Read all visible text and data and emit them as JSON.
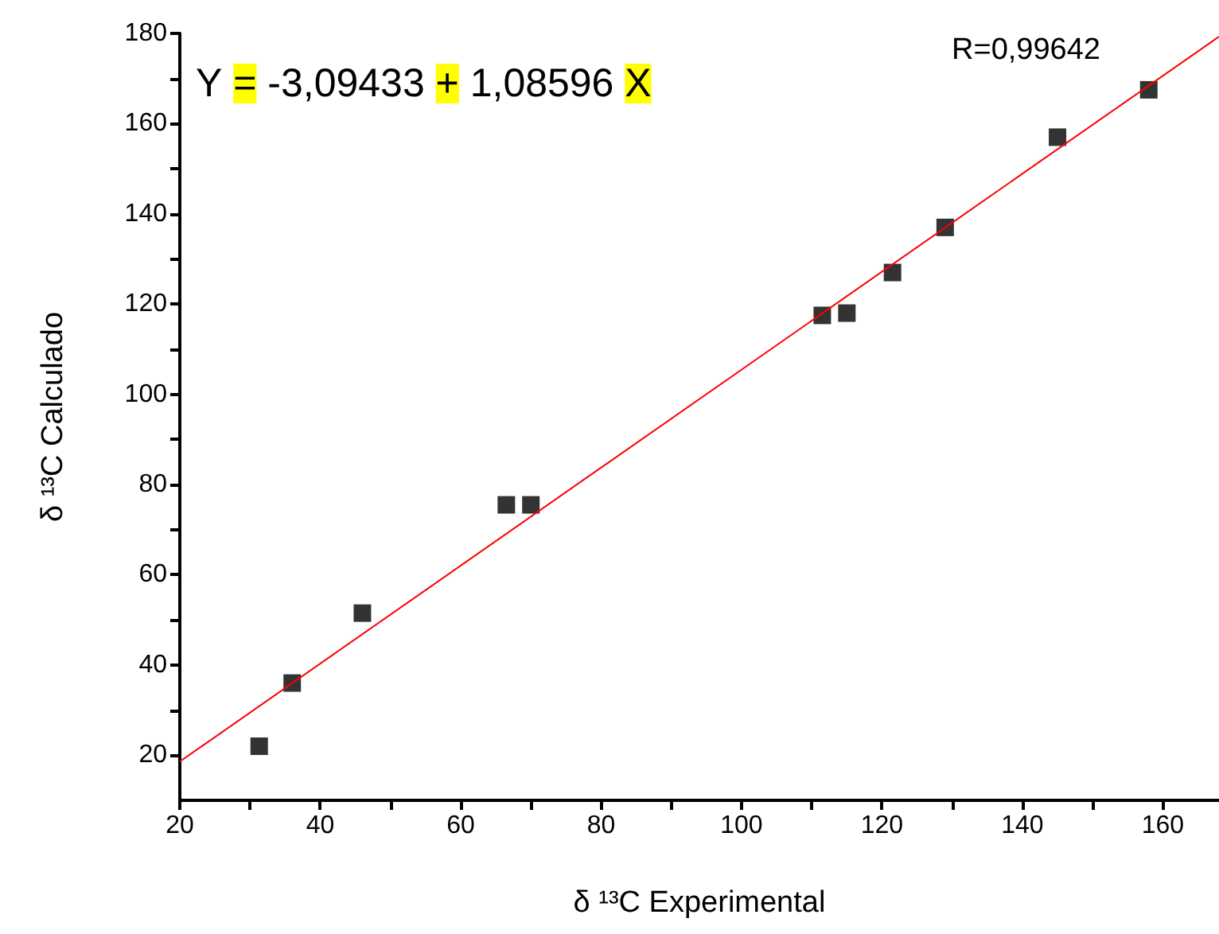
{
  "chart_data": {
    "type": "scatter",
    "xlabel": "δ ¹³C Experimental",
    "ylabel": "δ ¹³C Calculado",
    "annotations": [
      "Y = -3,09433 + 1,08596 X",
      "R=0,99642"
    ],
    "xlim": [
      20,
      168
    ],
    "xticks": [
      20,
      40,
      60,
      80,
      100,
      120,
      140,
      160
    ],
    "ylim": [
      10,
      180
    ],
    "yticks": [
      20,
      40,
      60,
      80,
      100,
      120,
      140,
      160,
      180
    ],
    "grid": false,
    "marker": "square",
    "series": [
      {
        "color": "#000000",
        "x": [
          31.3,
          36,
          46,
          66.5,
          70,
          111.5,
          115,
          121.5,
          129,
          145,
          158
        ],
        "values": [
          22,
          36,
          51.5,
          75.5,
          75.5,
          117.5,
          118,
          127,
          137,
          157,
          167.5
        ]
      },
      {
        "type": "line",
        "color": "#ff0000",
        "marker": "none",
        "x": [
          20,
          168
        ],
        "values": [
          18.6,
          179.3
        ]
      }
    ]
  }
}
